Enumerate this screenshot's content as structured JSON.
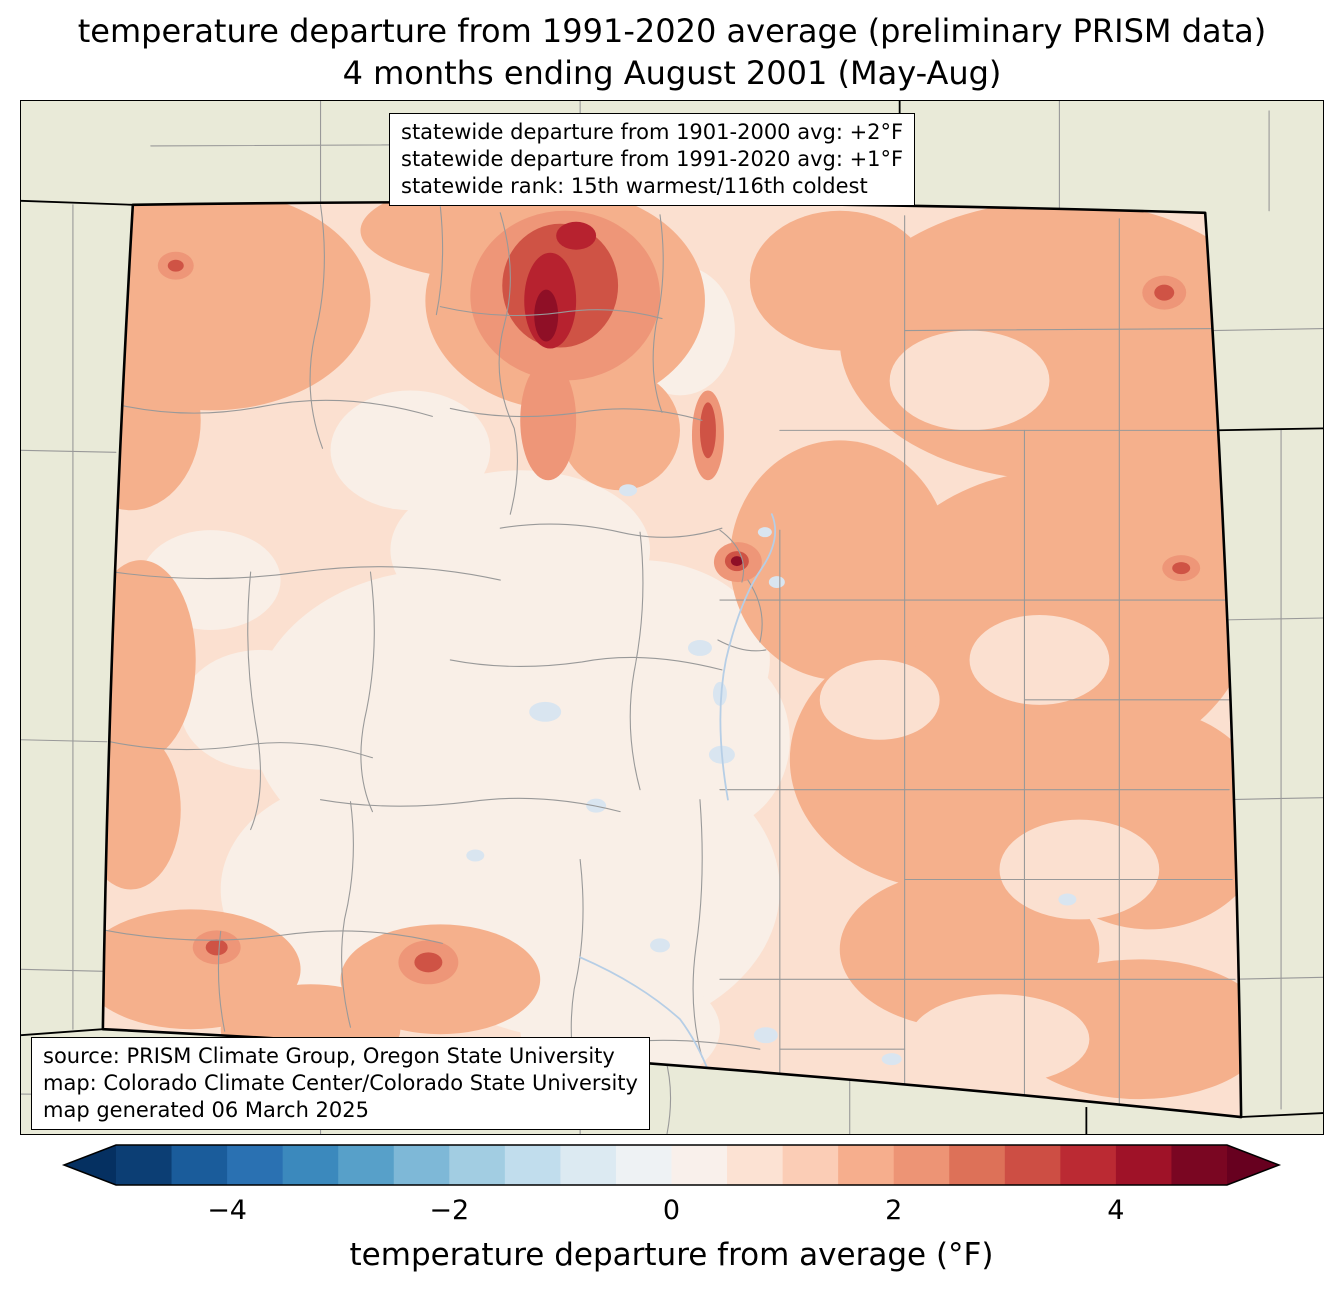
{
  "title": {
    "line1": "temperature departure from 1991-2020 average (preliminary PRISM data)",
    "line2": "4 months ending August 2001 (May-Aug)"
  },
  "stats_box": {
    "line1": "statewide departure from 1901-2000 avg: +2°F",
    "line2": "statewide departure from 1991-2020 avg: +1°F",
    "line3": "statewide rank: 15th warmest/116th coldest"
  },
  "source_box": {
    "line1": "source: PRISM Climate Group, Oregon State University",
    "line2": "map: Colorado Climate Center/Colorado State University",
    "line3": "map generated 06 March 2025"
  },
  "colorbar": {
    "label": "temperature departure from average (°F)",
    "ticks": [
      "−4",
      "−2",
      "0",
      "2",
      "4"
    ],
    "tick_values": [
      -4,
      -2,
      0,
      2,
      4
    ],
    "range": [
      -5,
      5
    ],
    "left_arrow_color": "#053061",
    "right_arrow_color": "#67001f",
    "segment_colors": [
      "#0c3e74",
      "#1a5c9b",
      "#2a71b2",
      "#3b89bd",
      "#57a0c9",
      "#7eb8d7",
      "#a2cde2",
      "#c1dded",
      "#dceaf2",
      "#eef2f4",
      "#f9f0eb",
      "#fce2d3",
      "#fbcdb6",
      "#f6ae8d",
      "#ed9475",
      "#dd7158",
      "#cd4e44",
      "#bb2a33",
      "#9f1228",
      "#7a0622"
    ]
  },
  "map": {
    "region": "Colorado",
    "palette": {
      "bg": "#e9ead8",
      "base": "#fbe0d0",
      "pale": "#f9efe7",
      "salmon": "#f5b08c",
      "mid": "#ee9678",
      "red": "#cf5345",
      "dark": "#b7222f",
      "darkest": "#8f0f26",
      "bluespot": "#d9e5f0",
      "county": "#999999",
      "river": "#b6cee6",
      "stateline": "#000000"
    }
  },
  "chart_data": {
    "type": "heatmap",
    "title": "temperature departure from 1991-2020 average (preliminary PRISM data) — 4 months ending August 2001 (May-Aug)",
    "region": "Colorado",
    "statewide_departure_from_1901_2000_avg_F": "+2",
    "statewide_departure_from_1991_2020_avg_F": "+1",
    "statewide_rank": "15th warmest/116th coldest",
    "colorbar_label": "temperature departure from average (°F)",
    "colorbar_range_F": [
      -5,
      5
    ],
    "colorbar_ticks_F": [
      -4,
      -2,
      0,
      2,
      4
    ],
    "legend_position": "bottom"
  }
}
